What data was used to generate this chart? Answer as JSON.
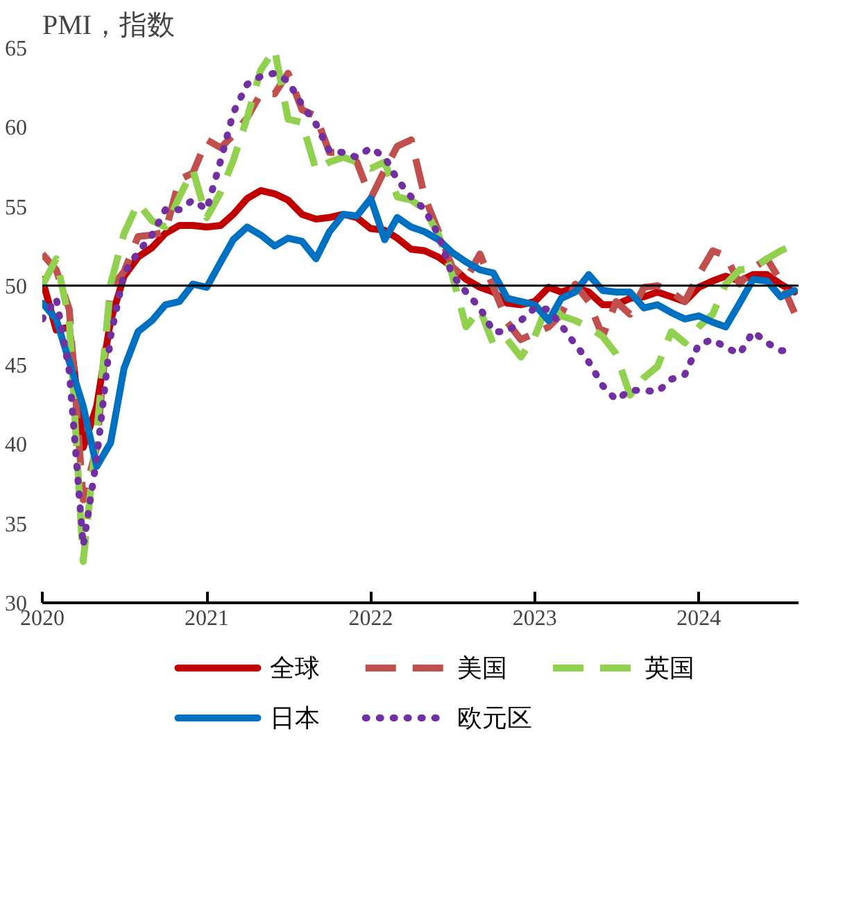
{
  "chart_data": {
    "type": "line",
    "title": "PMI，指数",
    "x": [
      "2020-01",
      "2020-02",
      "2020-03",
      "2020-04",
      "2020-05",
      "2020-06",
      "2020-07",
      "2020-08",
      "2020-09",
      "2020-10",
      "2020-11",
      "2020-12",
      "2021-01",
      "2021-02",
      "2021-03",
      "2021-04",
      "2021-05",
      "2021-06",
      "2021-07",
      "2021-08",
      "2021-09",
      "2021-10",
      "2021-11",
      "2021-12",
      "2022-01",
      "2022-02",
      "2022-03",
      "2022-04",
      "2022-05",
      "2022-06",
      "2022-07",
      "2022-08",
      "2022-09",
      "2022-10",
      "2022-11",
      "2022-12",
      "2023-01",
      "2023-02",
      "2023-03",
      "2023-04",
      "2023-05",
      "2023-06",
      "2023-07",
      "2023-08",
      "2023-09",
      "2023-10",
      "2023-11",
      "2023-12",
      "2024-01",
      "2024-02",
      "2024-03",
      "2024-04",
      "2024-05",
      "2024-06",
      "2024-07",
      "2024-08"
    ],
    "series": [
      {
        "name": "全球",
        "color": "#c00000",
        "line_style": "solid",
        "values": [
          50.4,
          47.2,
          47.4,
          39.8,
          42.4,
          47.8,
          50.6,
          51.8,
          52.4,
          53.3,
          53.8,
          53.8,
          53.7,
          53.8,
          54.5,
          55.5,
          56.0,
          55.8,
          55.4,
          54.5,
          54.2,
          54.3,
          54.5,
          54.3,
          53.6,
          53.5,
          53.0,
          52.3,
          52.2,
          51.8,
          51.2,
          50.4,
          49.9,
          49.6,
          48.9,
          48.8,
          49.0,
          49.9,
          49.6,
          49.9,
          49.6,
          48.8,
          48.8,
          49.2,
          49.3,
          49.6,
          49.3,
          49.0,
          49.9,
          50.3,
          50.6,
          50.3,
          50.7,
          50.7,
          50.1,
          49.6
        ]
      },
      {
        "name": "美国",
        "color": "#c0504d",
        "line_style": "dashed",
        "values": [
          52.0,
          51.0,
          48.5,
          36.5,
          39.8,
          49.8,
          50.9,
          53.1,
          53.2,
          53.4,
          56.7,
          57.1,
          59.2,
          58.7,
          59.5,
          60.6,
          62.1,
          62.1,
          63.4,
          61.1,
          60.7,
          58.4,
          58.4,
          57.8,
          55.5,
          57.3,
          58.8,
          59.2,
          55.6,
          53.4,
          51.2,
          50.4,
          52.0,
          49.9,
          47.7,
          46.6,
          47.0,
          47.4,
          48.2,
          50.1,
          49.0,
          46.8,
          49.0,
          48.2,
          49.9,
          50.0,
          49.6,
          49.0,
          50.7,
          52.2,
          51.9,
          50.1,
          51.1,
          51.7,
          50.3,
          48.3
        ]
      },
      {
        "name": "英国",
        "color": "#92d050",
        "line_style": "dashed",
        "values": [
          50.0,
          51.7,
          47.8,
          32.6,
          40.7,
          50.1,
          53.3,
          55.2,
          54.1,
          53.7,
          55.6,
          57.3,
          54.3,
          55.9,
          57.9,
          60.6,
          63.6,
          64.9,
          60.5,
          60.3,
          57.3,
          57.8,
          58.1,
          57.8,
          57.4,
          57.8,
          55.6,
          55.4,
          54.8,
          53.2,
          50.7,
          47.4,
          48.5,
          46.3,
          46.6,
          45.5,
          46.8,
          49.0,
          48.1,
          47.8,
          47.4,
          46.8,
          45.7,
          43.1,
          44.2,
          44.9,
          47.1,
          46.4,
          47.4,
          48.2,
          50.1,
          51.0,
          51.1,
          51.7,
          52.2,
          52.6
        ]
      },
      {
        "name": "日本",
        "color": "#0070c0",
        "line_style": "solid",
        "values": [
          48.9,
          47.9,
          45.2,
          42.4,
          38.6,
          40.1,
          44.8,
          47.1,
          47.8,
          48.8,
          49.0,
          50.1,
          49.9,
          51.5,
          52.9,
          53.7,
          53.2,
          52.5,
          53.0,
          52.8,
          51.7,
          53.4,
          54.5,
          54.4,
          55.5,
          52.9,
          54.3,
          53.7,
          53.4,
          52.9,
          52.1,
          51.5,
          51.0,
          50.8,
          49.2,
          49.0,
          48.8,
          47.8,
          49.2,
          49.6,
          50.7,
          49.7,
          49.6,
          49.6,
          48.6,
          48.8,
          48.3,
          47.9,
          48.1,
          47.7,
          47.4,
          48.9,
          50.4,
          50.3,
          49.3,
          49.7
        ]
      },
      {
        "name": "欧元区",
        "color": "#7030a0",
        "line_style": "dotted",
        "values": [
          47.9,
          49.2,
          44.6,
          33.6,
          39.1,
          46.8,
          50.8,
          52.1,
          53.2,
          54.8,
          54.8,
          55.4,
          54.8,
          57.9,
          60.9,
          62.7,
          63.2,
          63.4,
          62.9,
          61.4,
          60.2,
          58.5,
          58.4,
          58.1,
          58.7,
          58.1,
          56.7,
          55.6,
          54.8,
          53.2,
          50.7,
          49.6,
          48.6,
          47.1,
          47.1,
          47.8,
          48.6,
          48.5,
          47.5,
          46.3,
          45.2,
          43.7,
          42.8,
          43.4,
          43.4,
          43.3,
          44.1,
          44.4,
          46.3,
          46.6,
          46.1,
          45.7,
          47.1,
          46.4,
          45.9,
          45.9
        ]
      }
    ],
    "xlim": [
      "2020-01",
      "2024-08-10"
    ],
    "xticks": [
      "2020",
      "2021",
      "2022",
      "2023",
      "2024"
    ],
    "ylim": [
      30,
      65
    ],
    "yticks": [
      30,
      35,
      40,
      45,
      50,
      55,
      60,
      65
    ],
    "ref_lines": [
      {
        "axis": "y",
        "value": 50,
        "color": "#000000"
      }
    ],
    "grid": false,
    "legend": "bottom"
  }
}
